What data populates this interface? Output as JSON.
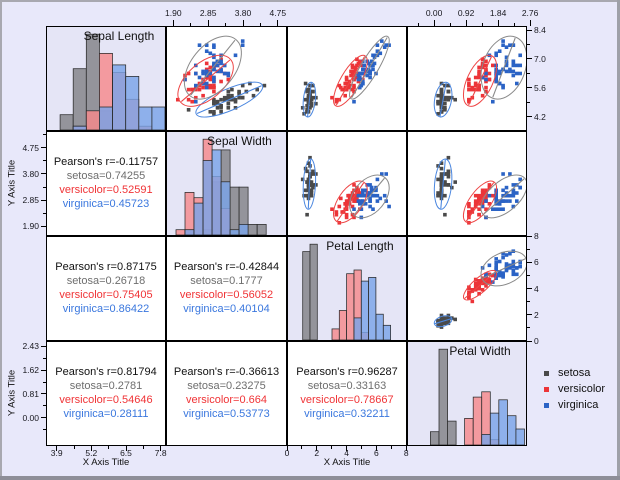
{
  "window": {
    "background": "#E8E8FA"
  },
  "labels": {
    "x_axis_title": "X Axis Title",
    "y_axis_title": "Y Axis Title"
  },
  "legend": {
    "position": "right"
  },
  "chart_data": {
    "type": "scatter",
    "subtype": "scatter-matrix",
    "variables": [
      "Sepal Length",
      "Sepal Width",
      "Petal Length",
      "Petal Width"
    ],
    "pearson_prefix": "Pearson's r=",
    "groups": [
      {
        "name": "setosa",
        "point": "#4A4A4A",
        "hist": "#8F8F96",
        "hist_opacity": 0.95,
        "ellipse": "#4A86DF",
        "label": "#6E6E6E"
      },
      {
        "name": "versicolor",
        "point": "#EC3438",
        "hist": "#F5898B",
        "hist_opacity": 0.82,
        "ellipse": "#EE4545",
        "label": "#F03336"
      },
      {
        "name": "virginica",
        "point": "#2B63C5",
        "hist": "#7AA4E8",
        "hist_opacity": 0.82,
        "ellipse": "#8A8A8A",
        "label": "#3A77DE"
      }
    ],
    "pearson_cells": [
      {
        "row": 1,
        "col": 0,
        "r": "-0.11757",
        "values": [
          "0.74255",
          "0.52591",
          "0.45723"
        ]
      },
      {
        "row": 2,
        "col": 0,
        "r": "0.87175",
        "values": [
          "0.26718",
          "0.75405",
          "0.86422"
        ]
      },
      {
        "row": 2,
        "col": 1,
        "r": "-0.42844",
        "values": [
          "0.1777",
          "0.56052",
          "0.40104"
        ]
      },
      {
        "row": 3,
        "col": 0,
        "r": "0.81794",
        "values": [
          "0.2781",
          "0.54646",
          "0.28111"
        ]
      },
      {
        "row": 3,
        "col": 1,
        "r": "-0.36613",
        "values": [
          "0.23275",
          "0.664",
          "0.53773"
        ]
      },
      {
        "row": 3,
        "col": 2,
        "r": "0.96287",
        "values": [
          "0.33163",
          "0.78667",
          "0.32211"
        ]
      }
    ],
    "axes": {
      "x_ranges": [
        [
          3.5,
          8.0
        ],
        [
          1.7,
          5.0
        ],
        [
          0.0,
          8.05
        ],
        [
          -0.78,
          2.67
        ]
      ],
      "y_ranges": [
        [
          3.5,
          8.6
        ],
        [
          1.55,
          5.35
        ],
        [
          0.0,
          8.0
        ],
        [
          -0.95,
          2.6
        ]
      ],
      "top": [
        {
          "col": 1,
          "labels": [
            "1.90",
            "2.85",
            "3.80",
            "4.75"
          ],
          "values": [
            1.9,
            2.85,
            3.8,
            4.75
          ]
        },
        {
          "col": 3,
          "labels": [
            "0.00",
            "0.92",
            "1.84",
            "2.76"
          ],
          "values": [
            0.0,
            0.92,
            1.84,
            2.76
          ]
        }
      ],
      "bottom": [
        {
          "col": 0,
          "labels": [
            "3.9",
            "5.2",
            "6.5",
            "7.8"
          ],
          "values": [
            3.9,
            5.2,
            6.5,
            7.8
          ]
        },
        {
          "col": 2,
          "labels": [
            "0",
            "2",
            "4",
            "6",
            "8"
          ],
          "values": [
            0,
            2,
            4,
            6,
            8
          ]
        }
      ],
      "left": [
        {
          "row": 1,
          "labels": [
            "4.75",
            "3.80",
            "2.85",
            "1.90"
          ],
          "values": [
            4.75,
            3.8,
            2.85,
            1.9
          ]
        },
        {
          "row": 3,
          "labels": [
            "2.43",
            "1.62",
            "0.81",
            "0.00"
          ],
          "values": [
            2.43,
            1.62,
            0.81,
            0.0
          ]
        }
      ],
      "right": [
        {
          "row": 0,
          "labels": [
            "8.4",
            "7.0",
            "5.6",
            "4.2"
          ],
          "values": [
            8.4,
            7.0,
            5.6,
            4.2
          ]
        },
        {
          "row": 2,
          "labels": [
            "8",
            "6",
            "4",
            "2",
            "0"
          ],
          "values": [
            8,
            6,
            4,
            2,
            0
          ]
        }
      ]
    },
    "hist_bins": {
      "origins": [
        4.0,
        1.95,
        1.0,
        -0.125
      ],
      "widths": [
        0.5,
        0.25,
        0.5,
        0.25
      ]
    },
    "ellipse_confidence_k": 2.447,
    "data": {
      "setosa": [
        [
          5.1,
          3.5,
          1.4,
          0.2
        ],
        [
          4.9,
          3.0,
          1.4,
          0.2
        ],
        [
          4.7,
          3.2,
          1.3,
          0.2
        ],
        [
          4.6,
          3.1,
          1.5,
          0.2
        ],
        [
          5.0,
          3.6,
          1.4,
          0.2
        ],
        [
          5.4,
          3.9,
          1.7,
          0.4
        ],
        [
          4.6,
          3.4,
          1.4,
          0.3
        ],
        [
          5.0,
          3.4,
          1.5,
          0.2
        ],
        [
          4.4,
          2.9,
          1.4,
          0.2
        ],
        [
          4.9,
          3.1,
          1.5,
          0.1
        ],
        [
          5.4,
          3.7,
          1.5,
          0.2
        ],
        [
          4.8,
          3.4,
          1.6,
          0.2
        ],
        [
          4.8,
          3.0,
          1.4,
          0.1
        ],
        [
          4.3,
          3.0,
          1.1,
          0.1
        ],
        [
          5.8,
          4.0,
          1.2,
          0.2
        ],
        [
          5.7,
          4.4,
          1.5,
          0.4
        ],
        [
          5.4,
          3.9,
          1.3,
          0.4
        ],
        [
          5.1,
          3.5,
          1.4,
          0.3
        ],
        [
          5.7,
          3.8,
          1.7,
          0.3
        ],
        [
          5.1,
          3.8,
          1.5,
          0.3
        ],
        [
          5.4,
          3.4,
          1.7,
          0.2
        ],
        [
          5.1,
          3.7,
          1.5,
          0.4
        ],
        [
          4.6,
          3.6,
          1.0,
          0.2
        ],
        [
          5.1,
          3.3,
          1.7,
          0.5
        ],
        [
          4.8,
          3.4,
          1.9,
          0.2
        ],
        [
          5.0,
          3.0,
          1.6,
          0.2
        ],
        [
          5.0,
          3.4,
          1.6,
          0.4
        ],
        [
          5.2,
          3.5,
          1.5,
          0.2
        ],
        [
          5.2,
          3.4,
          1.4,
          0.2
        ],
        [
          4.7,
          3.2,
          1.6,
          0.2
        ],
        [
          4.8,
          3.1,
          1.6,
          0.2
        ],
        [
          5.4,
          3.4,
          1.5,
          0.4
        ],
        [
          5.2,
          4.1,
          1.5,
          0.1
        ],
        [
          5.5,
          4.2,
          1.4,
          0.2
        ],
        [
          4.9,
          3.1,
          1.5,
          0.2
        ],
        [
          5.0,
          3.2,
          1.2,
          0.2
        ],
        [
          5.5,
          3.5,
          1.3,
          0.2
        ],
        [
          4.9,
          3.6,
          1.4,
          0.1
        ],
        [
          4.4,
          3.0,
          1.3,
          0.2
        ],
        [
          5.1,
          3.4,
          1.5,
          0.2
        ],
        [
          5.0,
          3.5,
          1.3,
          0.3
        ],
        [
          4.5,
          2.3,
          1.3,
          0.3
        ],
        [
          4.4,
          3.2,
          1.3,
          0.2
        ],
        [
          5.0,
          3.5,
          1.6,
          0.6
        ],
        [
          5.1,
          3.8,
          1.9,
          0.4
        ],
        [
          4.8,
          3.0,
          1.4,
          0.3
        ],
        [
          5.1,
          3.8,
          1.6,
          0.2
        ],
        [
          4.6,
          3.2,
          1.4,
          0.2
        ],
        [
          5.3,
          3.7,
          1.5,
          0.2
        ],
        [
          5.0,
          3.3,
          1.4,
          0.2
        ]
      ],
      "versicolor": [
        [
          7.0,
          3.2,
          4.7,
          1.4
        ],
        [
          6.4,
          3.2,
          4.5,
          1.5
        ],
        [
          6.9,
          3.1,
          4.9,
          1.5
        ],
        [
          5.5,
          2.3,
          4.0,
          1.3
        ],
        [
          6.5,
          2.8,
          4.6,
          1.5
        ],
        [
          5.7,
          2.8,
          4.5,
          1.3
        ],
        [
          6.3,
          3.3,
          4.7,
          1.6
        ],
        [
          4.9,
          2.4,
          3.3,
          1.0
        ],
        [
          6.6,
          2.9,
          4.6,
          1.3
        ],
        [
          5.2,
          2.7,
          3.9,
          1.4
        ],
        [
          5.0,
          2.0,
          3.5,
          1.0
        ],
        [
          5.9,
          3.0,
          4.2,
          1.5
        ],
        [
          6.0,
          2.2,
          4.0,
          1.0
        ],
        [
          6.1,
          2.9,
          4.7,
          1.4
        ],
        [
          5.6,
          2.9,
          3.6,
          1.3
        ],
        [
          6.7,
          3.1,
          4.4,
          1.4
        ],
        [
          5.6,
          3.0,
          4.5,
          1.5
        ],
        [
          5.8,
          2.7,
          4.1,
          1.0
        ],
        [
          6.2,
          2.2,
          4.5,
          1.5
        ],
        [
          5.6,
          2.5,
          3.9,
          1.1
        ],
        [
          5.9,
          3.2,
          4.8,
          1.8
        ],
        [
          6.1,
          2.8,
          4.0,
          1.3
        ],
        [
          6.3,
          2.5,
          4.9,
          1.5
        ],
        [
          6.1,
          2.8,
          4.7,
          1.2
        ],
        [
          6.4,
          2.9,
          4.3,
          1.3
        ],
        [
          6.6,
          3.0,
          4.4,
          1.4
        ],
        [
          6.8,
          2.8,
          4.8,
          1.4
        ],
        [
          6.7,
          3.0,
          5.0,
          1.7
        ],
        [
          6.0,
          2.9,
          4.5,
          1.5
        ],
        [
          5.7,
          2.6,
          3.5,
          1.0
        ],
        [
          5.5,
          2.4,
          3.8,
          1.1
        ],
        [
          5.5,
          2.4,
          3.7,
          1.0
        ],
        [
          5.8,
          2.7,
          3.9,
          1.2
        ],
        [
          6.0,
          2.7,
          5.1,
          1.6
        ],
        [
          5.4,
          3.0,
          4.5,
          1.5
        ],
        [
          6.0,
          3.4,
          4.5,
          1.6
        ],
        [
          6.7,
          3.1,
          4.7,
          1.5
        ],
        [
          6.3,
          2.3,
          4.4,
          1.3
        ],
        [
          5.6,
          3.0,
          4.1,
          1.3
        ],
        [
          5.5,
          2.5,
          4.0,
          1.3
        ],
        [
          5.5,
          2.6,
          4.4,
          1.2
        ],
        [
          6.1,
          3.0,
          4.6,
          1.4
        ],
        [
          5.8,
          2.6,
          4.0,
          1.2
        ],
        [
          5.0,
          2.3,
          3.3,
          1.0
        ],
        [
          5.6,
          2.7,
          4.2,
          1.3
        ],
        [
          5.7,
          3.0,
          4.2,
          1.2
        ],
        [
          5.7,
          2.9,
          4.2,
          1.3
        ],
        [
          6.2,
          2.9,
          4.3,
          1.3
        ],
        [
          5.1,
          2.5,
          3.0,
          1.1
        ],
        [
          5.7,
          2.8,
          4.1,
          1.3
        ]
      ],
      "virginica": [
        [
          6.3,
          3.3,
          6.0,
          2.5
        ],
        [
          5.8,
          2.7,
          5.1,
          1.9
        ],
        [
          7.1,
          3.0,
          5.9,
          2.1
        ],
        [
          6.3,
          2.9,
          5.6,
          1.8
        ],
        [
          6.5,
          3.0,
          5.8,
          2.2
        ],
        [
          7.6,
          3.0,
          6.6,
          2.1
        ],
        [
          4.9,
          2.5,
          4.5,
          1.7
        ],
        [
          7.3,
          2.9,
          6.3,
          1.8
        ],
        [
          6.7,
          2.5,
          5.8,
          1.8
        ],
        [
          7.2,
          3.6,
          6.1,
          2.5
        ],
        [
          6.5,
          3.2,
          5.1,
          2.0
        ],
        [
          6.4,
          2.7,
          5.3,
          1.9
        ],
        [
          6.8,
          3.0,
          5.5,
          2.1
        ],
        [
          5.7,
          2.5,
          5.0,
          2.0
        ],
        [
          5.8,
          2.8,
          5.1,
          2.4
        ],
        [
          6.4,
          3.2,
          5.3,
          2.3
        ],
        [
          6.5,
          3.0,
          5.5,
          1.8
        ],
        [
          7.7,
          3.8,
          6.7,
          2.2
        ],
        [
          7.7,
          2.6,
          6.9,
          2.3
        ],
        [
          6.0,
          2.2,
          5.0,
          1.5
        ],
        [
          6.9,
          3.2,
          5.7,
          2.3
        ],
        [
          5.6,
          2.8,
          4.9,
          2.0
        ],
        [
          7.7,
          2.8,
          6.7,
          2.0
        ],
        [
          6.3,
          2.7,
          4.9,
          1.8
        ],
        [
          6.7,
          3.3,
          5.7,
          2.1
        ],
        [
          7.2,
          3.2,
          6.0,
          1.8
        ],
        [
          6.2,
          2.8,
          4.8,
          1.8
        ],
        [
          6.1,
          3.0,
          4.9,
          1.8
        ],
        [
          6.4,
          2.8,
          5.6,
          2.1
        ],
        [
          7.2,
          3.0,
          5.8,
          1.6
        ],
        [
          7.4,
          2.8,
          6.1,
          1.9
        ],
        [
          7.9,
          3.8,
          6.4,
          2.0
        ],
        [
          6.4,
          2.8,
          5.6,
          2.2
        ],
        [
          6.3,
          2.8,
          5.1,
          1.5
        ],
        [
          6.1,
          2.6,
          5.6,
          1.4
        ],
        [
          7.7,
          3.0,
          6.1,
          2.3
        ],
        [
          6.3,
          3.4,
          5.6,
          2.4
        ],
        [
          6.4,
          3.1,
          5.5,
          1.8
        ],
        [
          6.0,
          3.0,
          4.8,
          1.8
        ],
        [
          6.9,
          3.1,
          5.4,
          2.1
        ],
        [
          6.7,
          3.1,
          5.6,
          2.4
        ],
        [
          6.9,
          3.1,
          5.1,
          2.3
        ],
        [
          5.8,
          2.7,
          5.1,
          1.9
        ],
        [
          6.8,
          3.2,
          5.9,
          2.3
        ],
        [
          6.7,
          3.3,
          5.7,
          2.5
        ],
        [
          6.7,
          3.0,
          5.2,
          2.3
        ],
        [
          6.3,
          2.5,
          5.0,
          1.9
        ],
        [
          6.5,
          3.0,
          5.2,
          2.0
        ],
        [
          6.2,
          3.4,
          5.4,
          2.3
        ],
        [
          5.9,
          3.0,
          5.1,
          1.8
        ]
      ]
    }
  }
}
